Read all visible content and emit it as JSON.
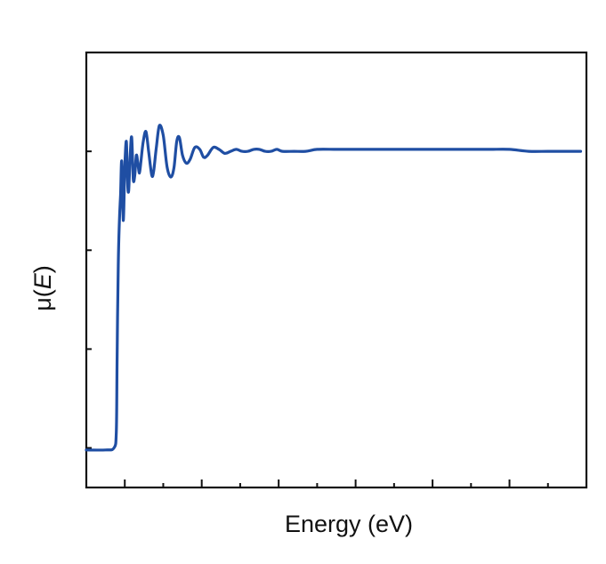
{
  "chart_data": {
    "type": "line",
    "title": "",
    "xlabel": "Energy (eV)",
    "ylabel_prefix": "μ(",
    "ylabel_var": "E",
    "ylabel_suffix": ")",
    "xlim": [
      0,
      13
    ],
    "ylim": [
      -0.2,
      2.0
    ],
    "x_ticks": [
      1,
      2,
      3,
      4,
      5,
      6,
      7,
      8,
      9,
      10,
      11,
      12
    ],
    "x_tick_labels_visible": false,
    "y_ticks": [
      0.0,
      0.5,
      1.0,
      1.5
    ],
    "y_tick_labels_visible": false,
    "grid": false,
    "legend": "none",
    "series": [
      {
        "color": "#1f4ea3",
        "x": [
          0.0,
          0.5,
          0.72,
          0.78,
          0.8,
          0.83,
          0.86,
          0.89,
          0.92,
          0.96,
          1.0,
          1.04,
          1.07,
          1.1,
          1.14,
          1.18,
          1.22,
          1.26,
          1.3,
          1.34,
          1.38,
          1.42,
          1.48,
          1.55,
          1.62,
          1.7,
          1.75,
          1.82,
          1.9,
          2.0,
          2.1,
          2.2,
          2.28,
          2.35,
          2.42,
          2.5,
          2.6,
          2.7,
          2.82,
          2.95,
          3.05,
          3.15,
          3.3,
          3.45,
          3.6,
          3.75,
          3.9,
          4.05,
          4.2,
          4.35,
          4.5,
          4.65,
          4.8,
          4.95,
          5.1,
          5.4,
          5.7,
          6.0,
          6.5,
          7.0,
          7.5,
          8.0,
          8.5,
          9.0,
          9.5,
          10.0,
          10.5,
          11.0,
          11.5,
          12.0,
          12.5,
          12.85
        ],
        "y": [
          -0.01,
          -0.01,
          0.0,
          0.08,
          0.45,
          0.92,
          1.15,
          1.28,
          1.45,
          1.15,
          1.42,
          1.55,
          1.35,
          1.3,
          1.48,
          1.57,
          1.36,
          1.38,
          1.48,
          1.44,
          1.39,
          1.45,
          1.55,
          1.6,
          1.5,
          1.38,
          1.4,
          1.52,
          1.63,
          1.58,
          1.42,
          1.37,
          1.42,
          1.55,
          1.57,
          1.48,
          1.44,
          1.46,
          1.52,
          1.51,
          1.47,
          1.48,
          1.52,
          1.51,
          1.49,
          1.5,
          1.51,
          1.5,
          1.5,
          1.51,
          1.51,
          1.5,
          1.5,
          1.51,
          1.5,
          1.5,
          1.5,
          1.51,
          1.51,
          1.51,
          1.51,
          1.51,
          1.51,
          1.51,
          1.51,
          1.51,
          1.51,
          1.51,
          1.5,
          1.5,
          1.5,
          1.5
        ]
      }
    ]
  }
}
